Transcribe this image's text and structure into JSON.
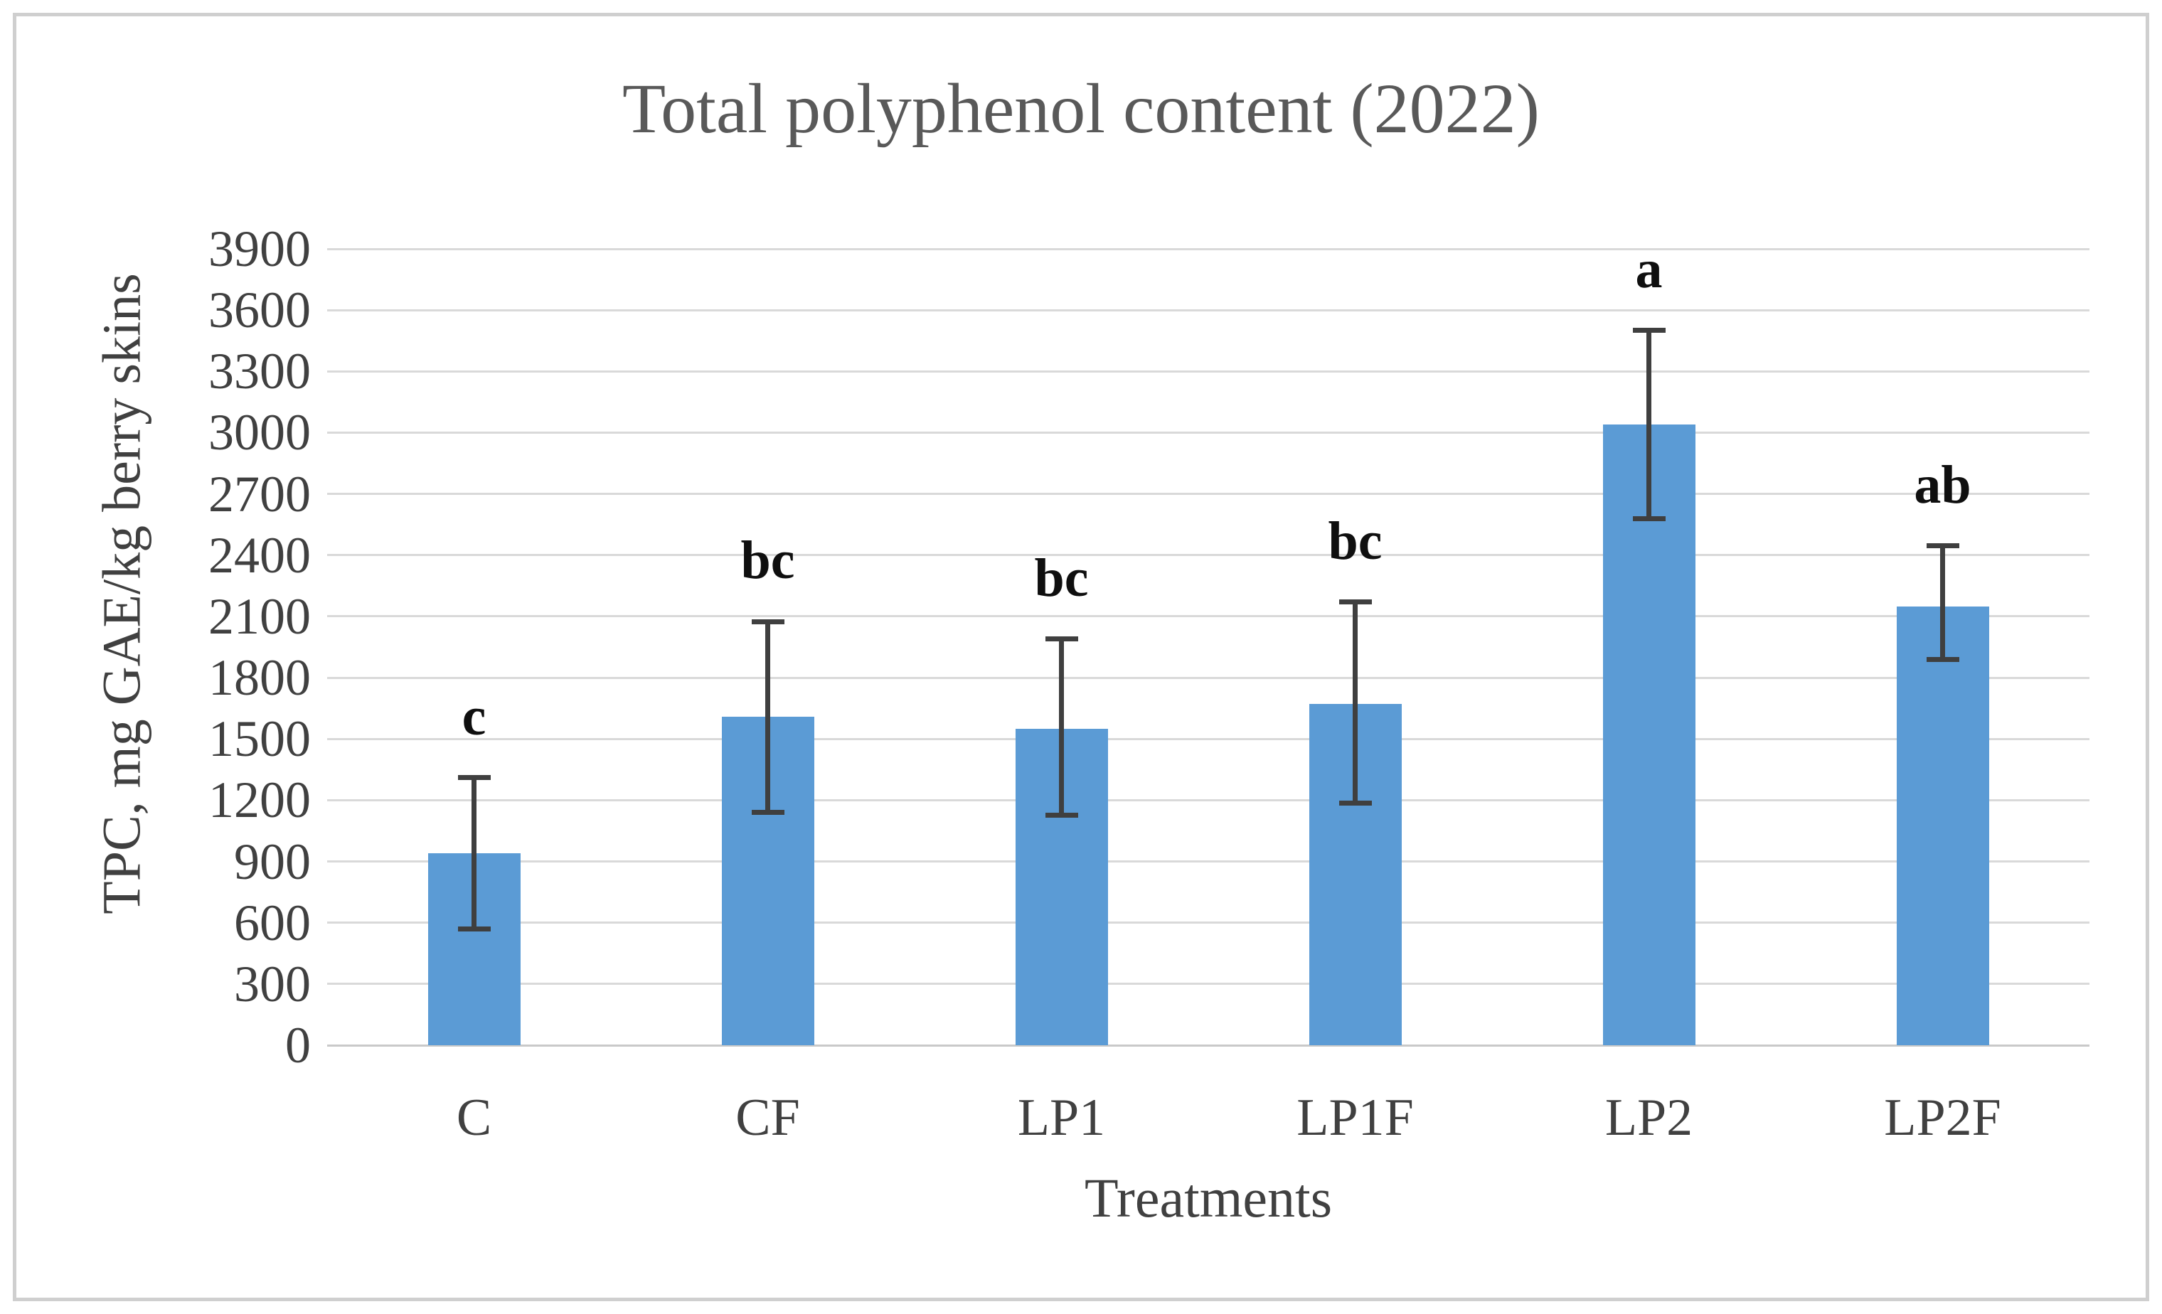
{
  "chart_data": {
    "type": "bar",
    "title": "Total polyphenol content (2022)",
    "xlabel": "Treatments",
    "ylabel": "TPC, mg GAE/kg berry skins",
    "categories": [
      "C",
      "CF",
      "LP1",
      "LP1F",
      "LP2",
      "LP2F"
    ],
    "values": [
      940,
      1610,
      1550,
      1670,
      3040,
      2150
    ],
    "error_bar_upper": [
      1310,
      2075,
      1990,
      2170,
      3500,
      2445
    ],
    "error_bar_lower": [
      570,
      1140,
      1125,
      1185,
      2580,
      1890
    ],
    "significance_letters": [
      "c",
      "bc",
      "bc",
      "bc",
      "a",
      "ab"
    ],
    "ylim": [
      0,
      3900
    ],
    "ytick_step": 300,
    "grid": "horizontal",
    "legend": "none",
    "colors": {
      "bar": "#5B9BD5",
      "error_bar": "#3F3F3F",
      "gridline": "#D9D9D9",
      "baseline": "#C9C9C9",
      "title_text": "#595959",
      "axis_text": "#404040",
      "letter_text": "#0F0F0F",
      "frame_border": "#CFCFCF"
    }
  }
}
